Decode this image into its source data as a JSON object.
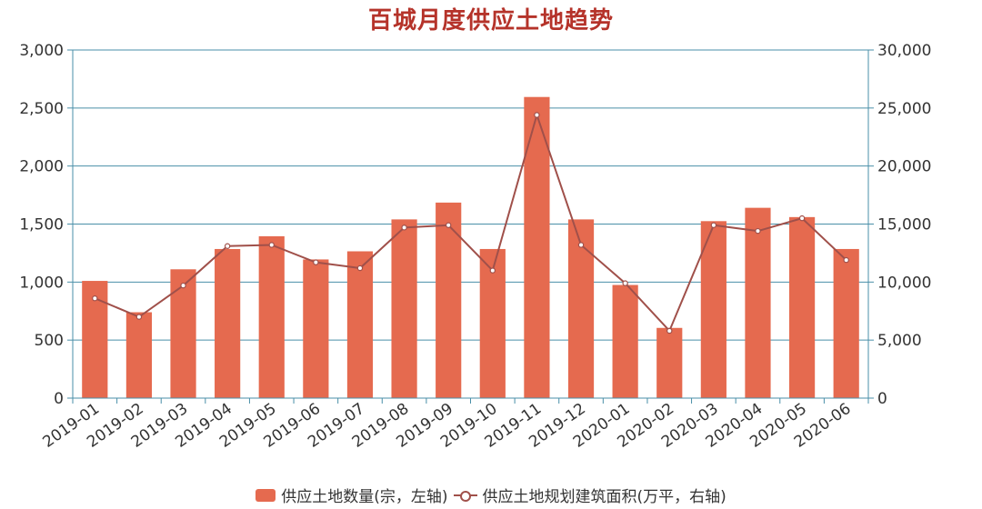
{
  "colors": {
    "bar": "#e56a4f",
    "line": "#a0504a",
    "axis": "#4a8fa8",
    "grid": "#4a8fa8",
    "title": "#b5332a"
  },
  "chart_data": {
    "type": "bar",
    "title": "百城月度供应土地趋势",
    "categories": [
      "2019-01",
      "2019-02",
      "2019-03",
      "2019-04",
      "2019-05",
      "2019-06",
      "2019-07",
      "2019-08",
      "2019-09",
      "2019-10",
      "2019-11",
      "2019-12",
      "2020-01",
      "2020-02",
      "2020-03",
      "2020-04",
      "2020-05",
      "2020-06"
    ],
    "series": [
      {
        "name": "供应土地数量(宗，左轴)",
        "type": "bar",
        "axis": "left",
        "values": [
          1010,
          740,
          1110,
          1285,
          1395,
          1195,
          1265,
          1540,
          1685,
          1285,
          2595,
          1540,
          975,
          605,
          1525,
          1640,
          1560,
          1285
        ]
      },
      {
        "name": "供应土地规划建筑面积(万平，右轴)",
        "type": "line",
        "axis": "right",
        "values": [
          8600,
          7000,
          9700,
          13100,
          13200,
          11700,
          11200,
          14700,
          14900,
          11000,
          24400,
          13200,
          9900,
          5800,
          14900,
          14400,
          15500,
          11900
        ]
      }
    ],
    "y_left": {
      "min": 0,
      "max": 3000,
      "ticks": [
        "0",
        "500",
        "1,000",
        "1,500",
        "2,000",
        "2,500",
        "3,000"
      ]
    },
    "y_right": {
      "min": 0,
      "max": 30000,
      "ticks": [
        "0",
        "5,000",
        "10,000",
        "15,000",
        "20,000",
        "25,000",
        "30,000"
      ]
    },
    "grid": true,
    "legend_position": "bottom"
  }
}
